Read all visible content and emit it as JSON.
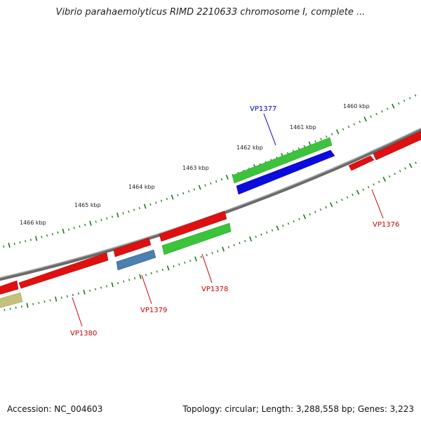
{
  "title": "Vibrio parahaemolyticus RIMD 2210633 chromosome I, complete ...",
  "footer": {
    "accession": "Accession: NC_004603",
    "summary": "Topology: circular; Length: 3,288,558 bp; Genes: 3,223"
  },
  "colors": {
    "backbone": "#8a8a8a",
    "tick": "#1a7a1a",
    "red": "#e01010",
    "green": "#3cc33c",
    "blue": "#0b0be0",
    "steelblue": "#4a7fb0",
    "olive": "#c4c27a",
    "label_red": "#cc0000",
    "label_blue": "#0000cc"
  },
  "ticks": [
    {
      "kbp": 1460,
      "label": "1460 kbp"
    },
    {
      "kbp": 1461,
      "label": "1461 kbp"
    },
    {
      "kbp": 1462,
      "label": "1462 kbp"
    },
    {
      "kbp": 1463,
      "label": "1463 kbp"
    },
    {
      "kbp": 1464,
      "label": "1464 kbp"
    },
    {
      "kbp": 1465,
      "label": "1465 kbp"
    },
    {
      "kbp": 1466,
      "label": "1466 kbp"
    }
  ],
  "genes": [
    {
      "name": "VP1376",
      "start_kbp": 1459.3,
      "end_kbp": 1460.0,
      "strand": "forward",
      "track": "outer",
      "color": "red",
      "labelled": true
    },
    {
      "name": "",
      "start_kbp": 1458.2,
      "end_kbp": 1459.2,
      "strand": "forward",
      "track": "outer",
      "color": "red",
      "labelled": false
    },
    {
      "name": "",
      "start_kbp": 1460.2,
      "end_kbp": 1461.7,
      "strand": "forward",
      "track": "inner",
      "color": "green",
      "labelled": false
    },
    {
      "name": "VP1377",
      "start_kbp": 1460.2,
      "end_kbp": 1461.7,
      "strand": "reverse",
      "track": "inner2",
      "color": "blue",
      "labelled": true
    },
    {
      "name": "VP1378",
      "start_kbp": 1462.7,
      "end_kbp": 1463.9,
      "strand": "forward",
      "track": "outer",
      "color": "red",
      "labelled": false
    },
    {
      "name": "VP1378",
      "start_kbp": 1462.7,
      "end_kbp": 1463.9,
      "strand": "forward",
      "track": "inner",
      "color": "green",
      "labelled": true
    },
    {
      "name": "",
      "start_kbp": 1464.0,
      "end_kbp": 1464.6,
      "strand": "forward",
      "track": "outer",
      "color": "red",
      "labelled": false
    },
    {
      "name": "VP1379",
      "start_kbp": 1464.0,
      "end_kbp": 1464.6,
      "strand": "forward",
      "track": "inner",
      "color": "steelblue",
      "labelled": true
    },
    {
      "name": "VP1380",
      "start_kbp": 1464.9,
      "end_kbp": 1466.5,
      "strand": "forward",
      "track": "outer",
      "color": "red",
      "labelled": true
    },
    {
      "name": "",
      "start_kbp": 1466.6,
      "end_kbp": 1467.2,
      "strand": "forward",
      "track": "outer",
      "color": "red",
      "labelled": false
    },
    {
      "name": "",
      "start_kbp": 1466.6,
      "end_kbp": 1467.2,
      "strand": "forward",
      "track": "inner",
      "color": "olive",
      "labelled": false
    }
  ]
}
